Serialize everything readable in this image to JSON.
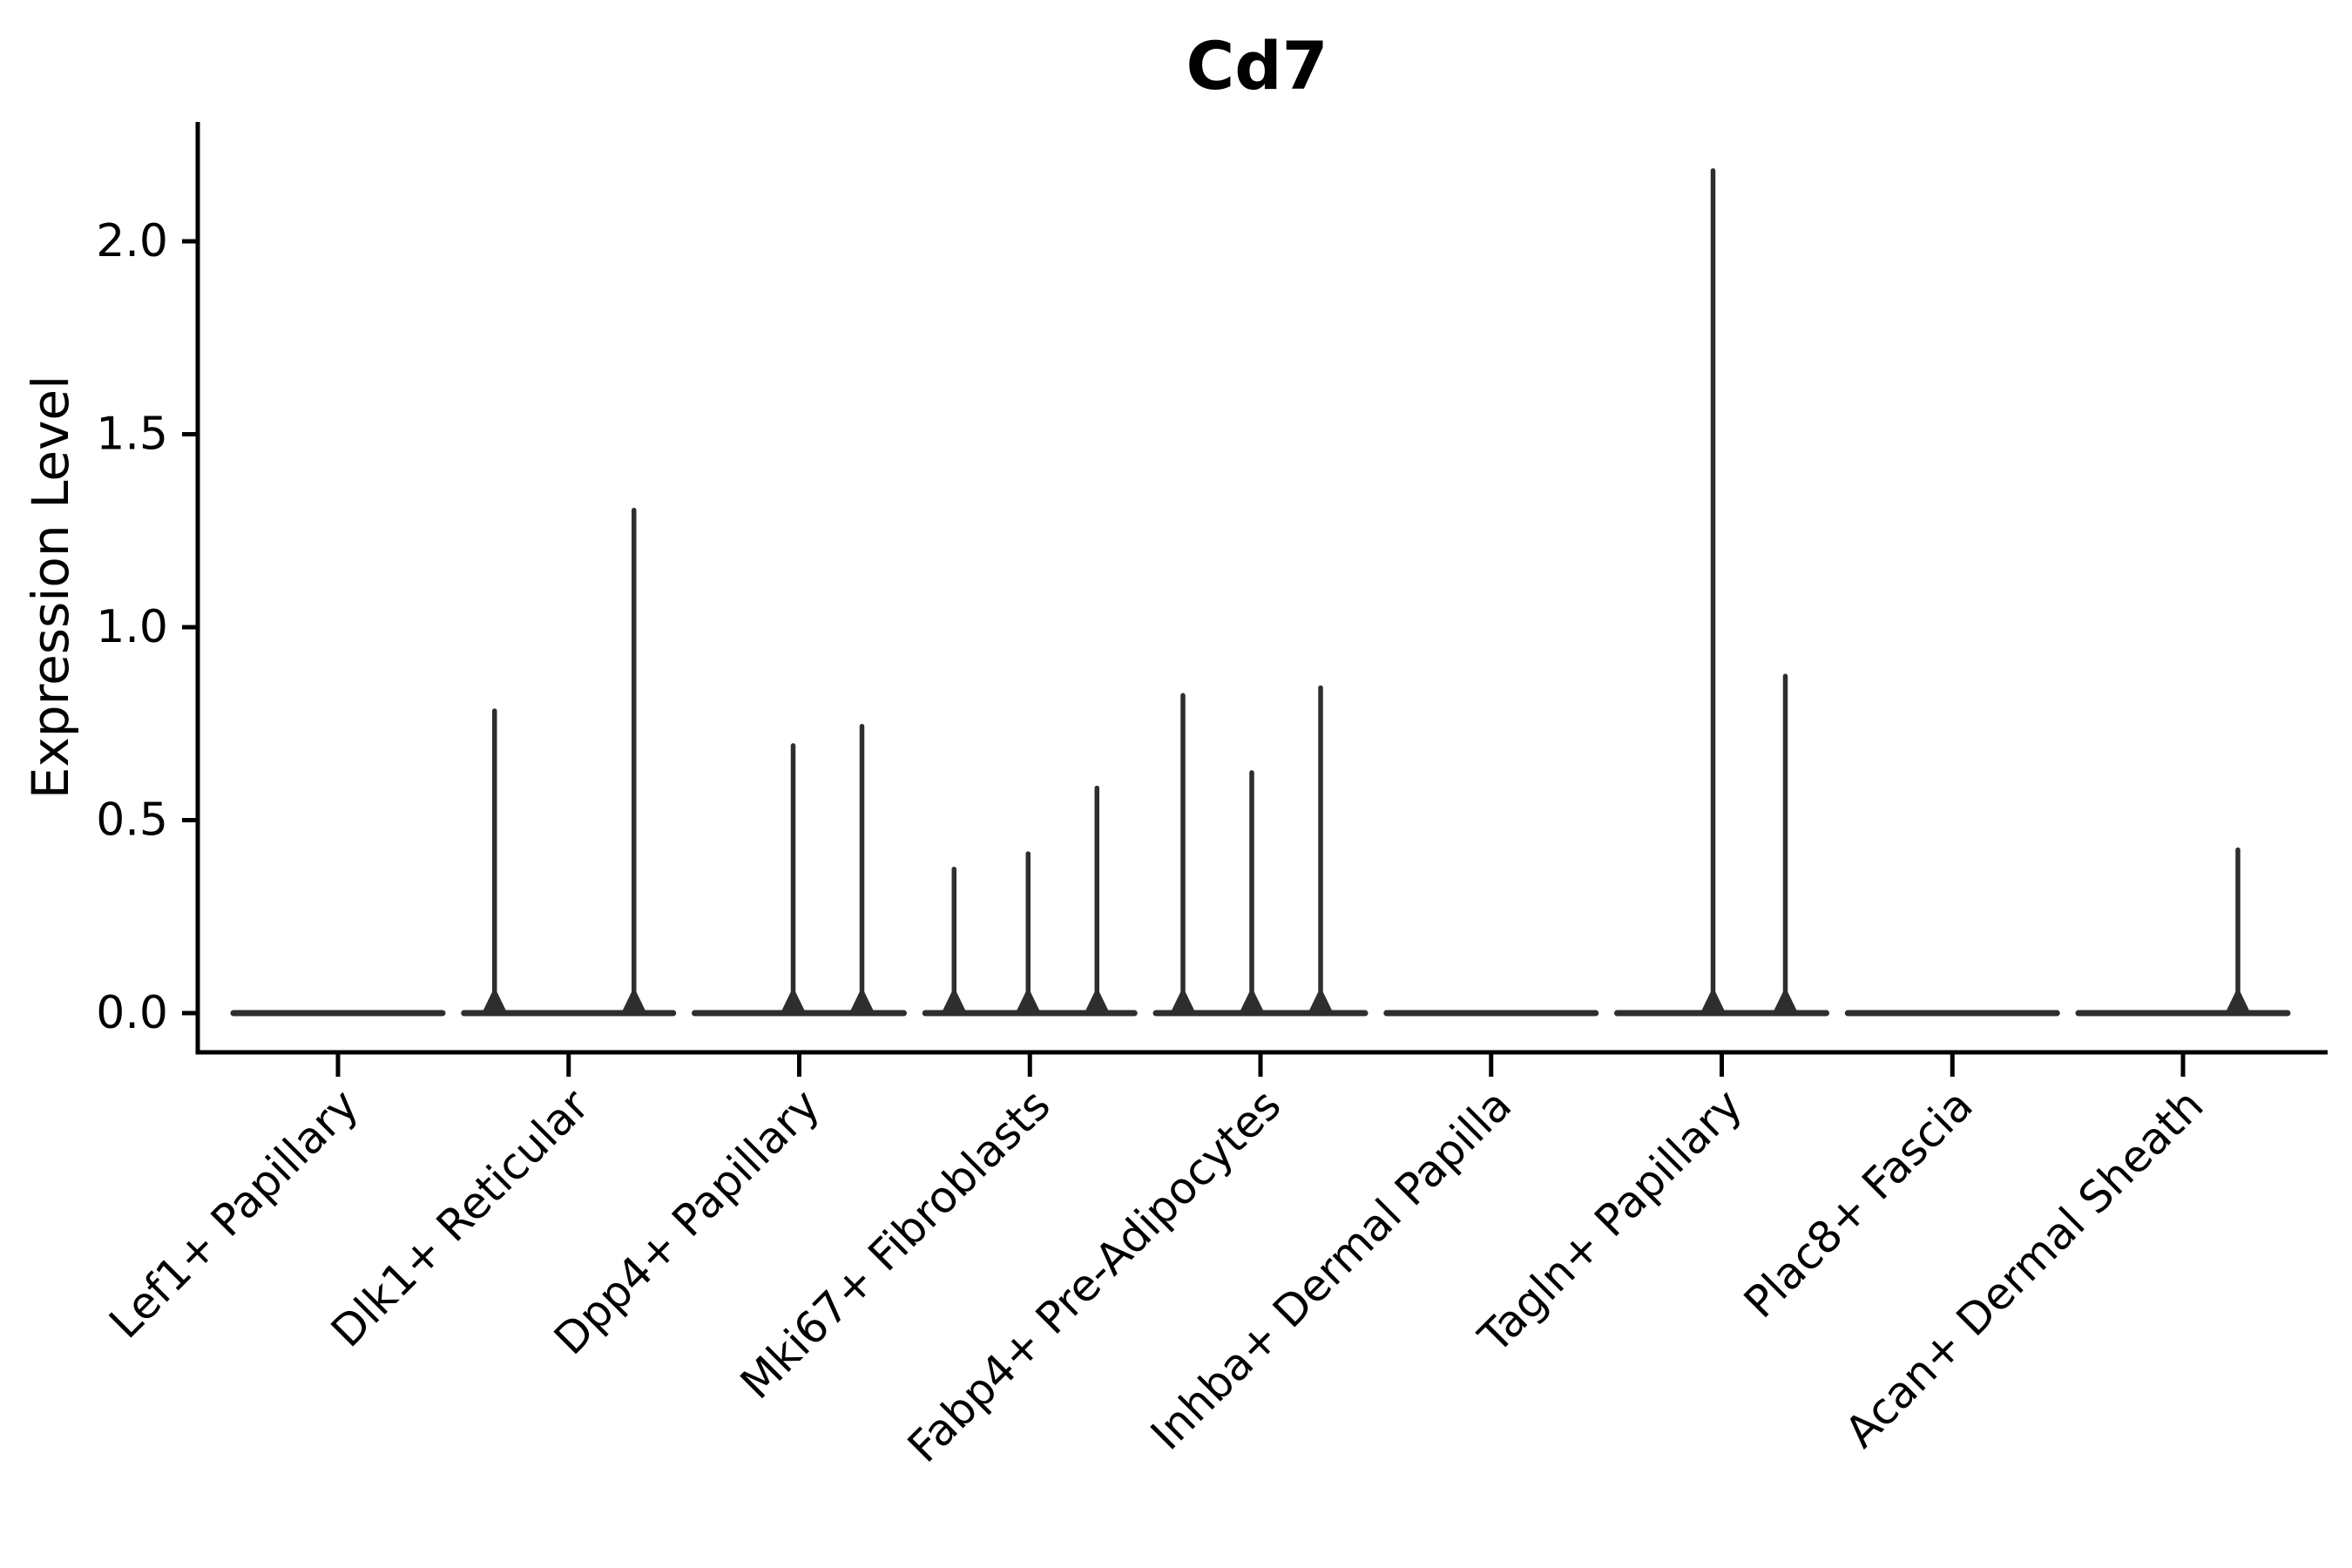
{
  "figure": {
    "background": "#ffffff"
  },
  "chart_data": {
    "type": "violin",
    "title": "Cd7",
    "ylabel": "Expression Level",
    "xlabel": "",
    "ylim": [
      0,
      2.31
    ],
    "yticks": [
      0,
      0.5,
      1.0,
      1.5,
      2.0
    ],
    "ytick_labels": [
      "0.0",
      "0.5",
      "1.0",
      "1.5",
      "2.0"
    ],
    "grid": false,
    "legend": "none",
    "violin_line_color": "#2e2e2e",
    "axis_color": "#000000",
    "text_color": "#000000",
    "x_tick_label_rotation_deg": 45,
    "categories": [
      "Lef1+ Papillary",
      "Dlk1+ Reticular",
      "Dpp4+ Papillary",
      "Mki67+ Fibroblasts",
      "Fabp4+ Pre-Adipocytes",
      "Inhba+ Dermal Papilla",
      "Tagln+ Papillary",
      "Plac8+ Fascia",
      "Acan+ Dermal Sheath"
    ],
    "series": [
      {
        "category": "Lef1+ Papillary",
        "baseline_value": 0,
        "spikes": []
      },
      {
        "category": "Dlk1+ Reticular",
        "baseline_value": 0,
        "spikes": [
          {
            "rel_x": -85,
            "value": 0.79
          },
          {
            "rel_x": 75,
            "value": 1.31
          }
        ]
      },
      {
        "category": "Dpp4+ Papillary",
        "baseline_value": 0,
        "spikes": [
          {
            "rel_x": -7,
            "value": 0.7
          },
          {
            "rel_x": 72,
            "value": 0.75
          }
        ]
      },
      {
        "category": "Mki67+ Fibroblasts",
        "baseline_value": 0,
        "spikes": [
          {
            "rel_x": -87,
            "value": 0.38
          },
          {
            "rel_x": -2,
            "value": 0.42
          },
          {
            "rel_x": 77,
            "value": 0.59
          }
        ]
      },
      {
        "category": "Fabp4+ Pre-Adipocytes",
        "baseline_value": 0,
        "spikes": [
          {
            "rel_x": -89,
            "value": 0.83
          },
          {
            "rel_x": -10,
            "value": 0.63
          },
          {
            "rel_x": 69,
            "value": 0.85
          }
        ]
      },
      {
        "category": "Inhba+ Dermal Papilla",
        "baseline_value": 0,
        "spikes": []
      },
      {
        "category": "Tagln+ Papillary",
        "baseline_value": 0,
        "spikes": [
          {
            "rel_x": -10,
            "value": 2.19
          },
          {
            "rel_x": 73,
            "value": 0.88
          }
        ]
      },
      {
        "category": "Plac8+ Fascia",
        "baseline_value": 0,
        "spikes": []
      },
      {
        "category": "Acan+ Dermal Sheath",
        "baseline_value": 0,
        "spikes": [
          {
            "rel_x": 63,
            "value": 0.43
          }
        ]
      }
    ]
  }
}
